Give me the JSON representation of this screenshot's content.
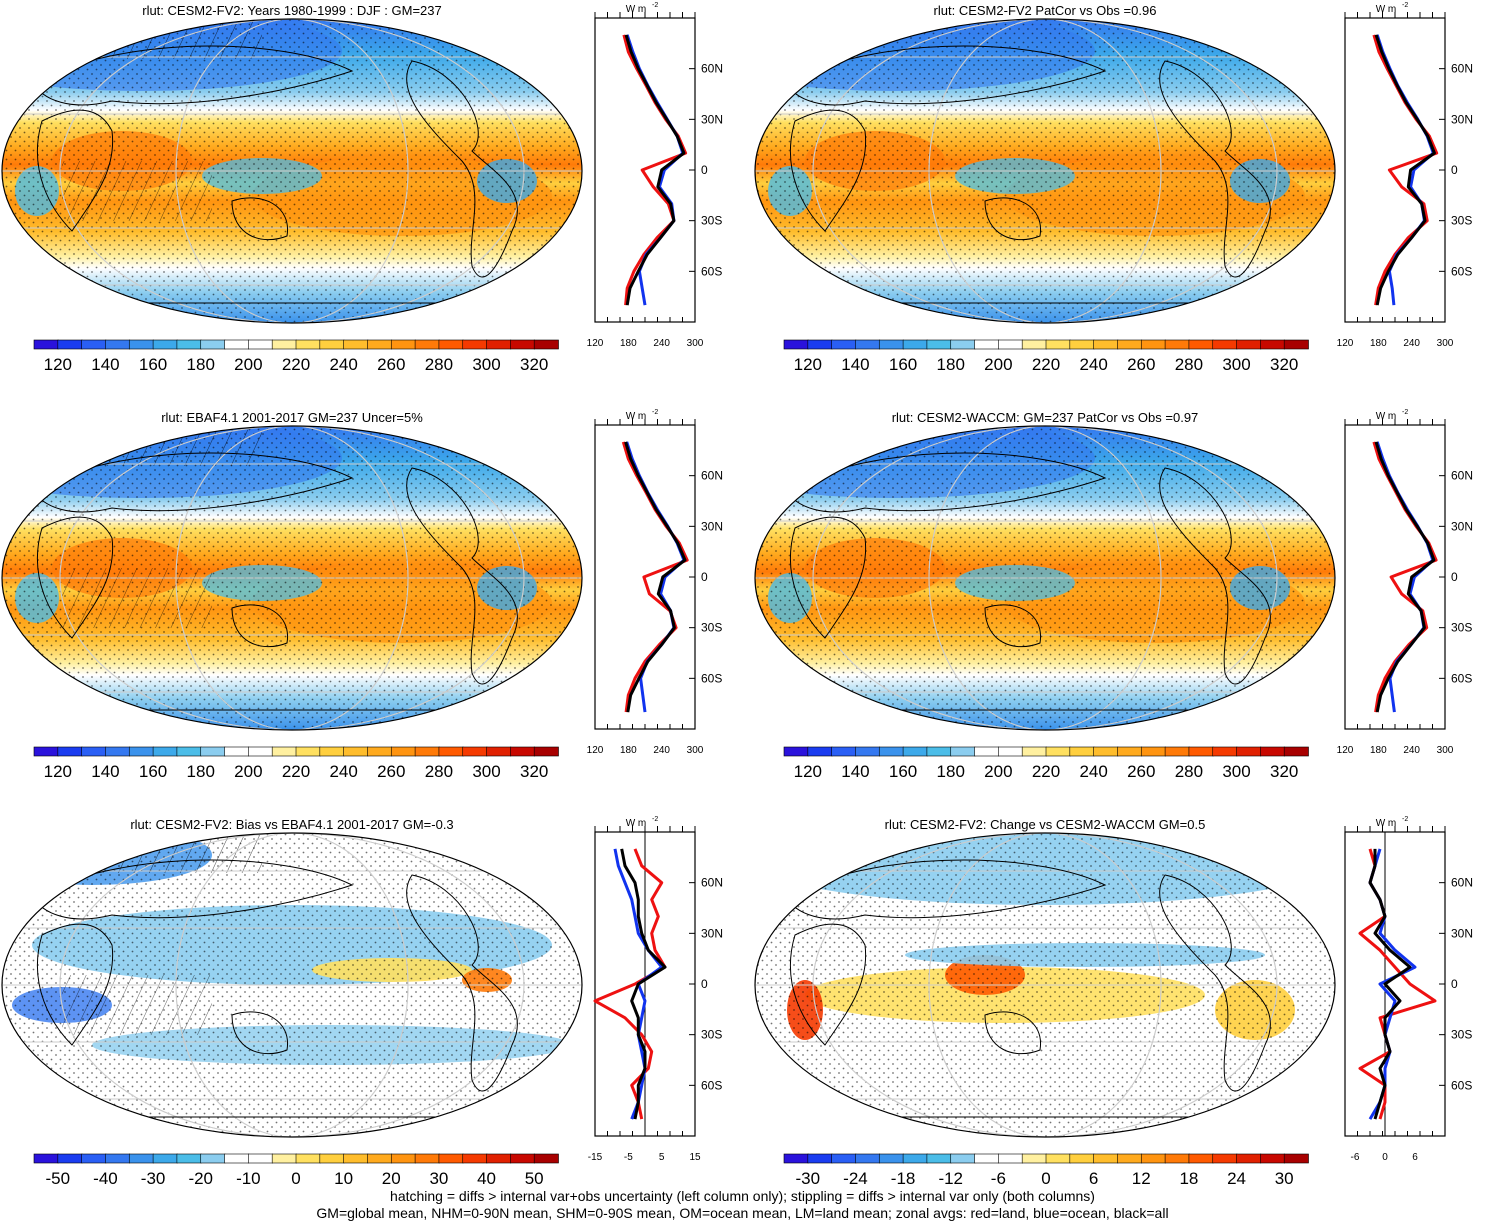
{
  "figure": {
    "caption_line1": "hatching = diffs > internal var+obs uncertainty (left column only); stippling = diffs > internal var only (both columns)",
    "caption_line2": "GM=global mean, NHM=0-90N mean, SHM=0-90S mean, OM=ocean mean, LM=land mean; zonal avgs: red=land, blue=ocean, black=all",
    "zonal_units": "W m",
    "zonal_units_sup": "-2",
    "lat_labels": [
      "60N",
      "30N",
      "0",
      "30S",
      "60S"
    ],
    "colors": {
      "land": "#ee1111",
      "ocean": "#1133ee",
      "all": "#000000"
    }
  },
  "panels": [
    {
      "title": "rlut: CESM2-FV2: Years 1980-1999 : DJF : GM=237",
      "map_type": "abs",
      "hatching": true,
      "colorbar": {
        "labels": [
          "120",
          "140",
          "160",
          "180",
          "200",
          "220",
          "240",
          "260",
          "280",
          "300",
          "320"
        ],
        "colors": [
          "#2a12dc",
          "#1a3cf0",
          "#2a5ff5",
          "#3478f0",
          "#3a92ec",
          "#3ca9ea",
          "#4bbde8",
          "#8bcdef",
          "#ffffff",
          "#ffffff",
          "#fff0a0",
          "#ffe060",
          "#ffcf3e",
          "#ffbd2c",
          "#ffaa1e",
          "#ff9410",
          "#ff7a08",
          "#ff5a00",
          "#f53a00",
          "#e02000",
          "#c80800",
          "#a80000"
        ]
      },
      "zonal_ticks": [
        "120",
        "180",
        "240",
        "300"
      ]
    },
    {
      "title": "rlut: CESM2-FV2 PatCor vs Obs =0.96",
      "map_type": "abs",
      "hatching": false,
      "colorbar": {
        "labels": [
          "120",
          "140",
          "160",
          "180",
          "200",
          "220",
          "240",
          "260",
          "280",
          "300",
          "320"
        ],
        "colors": [
          "#2a12dc",
          "#1a3cf0",
          "#2a5ff5",
          "#3478f0",
          "#3a92ec",
          "#3ca9ea",
          "#4bbde8",
          "#8bcdef",
          "#ffffff",
          "#ffffff",
          "#fff0a0",
          "#ffe060",
          "#ffcf3e",
          "#ffbd2c",
          "#ffaa1e",
          "#ff9410",
          "#ff7a08",
          "#ff5a00",
          "#f53a00",
          "#e02000",
          "#c80800",
          "#a80000"
        ]
      },
      "zonal_ticks": [
        "120",
        "180",
        "240",
        "300"
      ]
    },
    {
      "title": "rlut: EBAF4.1 2001-2017 GM=237 Uncer=5%",
      "map_type": "abs",
      "hatching": true,
      "colorbar": {
        "labels": [
          "120",
          "140",
          "160",
          "180",
          "200",
          "220",
          "240",
          "260",
          "280",
          "300",
          "320"
        ],
        "colors": [
          "#2a12dc",
          "#1a3cf0",
          "#2a5ff5",
          "#3478f0",
          "#3a92ec",
          "#3ca9ea",
          "#4bbde8",
          "#8bcdef",
          "#ffffff",
          "#ffffff",
          "#fff0a0",
          "#ffe060",
          "#ffcf3e",
          "#ffbd2c",
          "#ffaa1e",
          "#ff9410",
          "#ff7a08",
          "#ff5a00",
          "#f53a00",
          "#e02000",
          "#c80800",
          "#a80000"
        ]
      },
      "zonal_ticks": [
        "120",
        "180",
        "240",
        "300"
      ]
    },
    {
      "title": "rlut: CESM2-WACCM: GM=237 PatCor vs Obs =0.97",
      "map_type": "abs",
      "hatching": false,
      "colorbar": {
        "labels": [
          "120",
          "140",
          "160",
          "180",
          "200",
          "220",
          "240",
          "260",
          "280",
          "300",
          "320"
        ],
        "colors": [
          "#2a12dc",
          "#1a3cf0",
          "#2a5ff5",
          "#3478f0",
          "#3a92ec",
          "#3ca9ea",
          "#4bbde8",
          "#8bcdef",
          "#ffffff",
          "#ffffff",
          "#fff0a0",
          "#ffe060",
          "#ffcf3e",
          "#ffbd2c",
          "#ffaa1e",
          "#ff9410",
          "#ff7a08",
          "#ff5a00",
          "#f53a00",
          "#e02000",
          "#c80800",
          "#a80000"
        ]
      },
      "zonal_ticks": [
        "120",
        "180",
        "240",
        "300"
      ]
    },
    {
      "title": "rlut: CESM2-FV2: Bias vs EBAF4.1 2001-2017 GM=-0.3",
      "map_type": "diff",
      "hatching": true,
      "colorbar": {
        "labels": [
          "-50",
          "-40",
          "-30",
          "-20",
          "-10",
          "0",
          "10",
          "20",
          "30",
          "40",
          "50"
        ],
        "colors": [
          "#2a12dc",
          "#1a3cf0",
          "#2a5ff5",
          "#3478f0",
          "#3a92ec",
          "#3ca9ea",
          "#4bbde8",
          "#8bcdef",
          "#ffffff",
          "#ffffff",
          "#fff0a0",
          "#ffe060",
          "#ffcf3e",
          "#ffbd2c",
          "#ffaa1e",
          "#ff9410",
          "#ff7a08",
          "#ff5a00",
          "#f53a00",
          "#e02000",
          "#c80800",
          "#a80000"
        ]
      },
      "zonal_ticks": [
        "-15",
        "-5",
        "5",
        "15"
      ]
    },
    {
      "title": "rlut: CESM2-FV2: Change vs CESM2-WACCM GM=0.5",
      "map_type": "change",
      "hatching": false,
      "colorbar": {
        "labels": [
          "-30",
          "-24",
          "-18",
          "-12",
          "-6",
          "0",
          "6",
          "12",
          "18",
          "24",
          "30"
        ],
        "colors": [
          "#2a12dc",
          "#1a3cf0",
          "#2a5ff5",
          "#3478f0",
          "#3a92ec",
          "#3ca9ea",
          "#4bbde8",
          "#8bcdef",
          "#ffffff",
          "#ffffff",
          "#fff0a0",
          "#ffe060",
          "#ffcf3e",
          "#ffbd2c",
          "#ffaa1e",
          "#ff9410",
          "#ff7a08",
          "#ff5a00",
          "#f53a00",
          "#e02000",
          "#c80800",
          "#a80000"
        ]
      },
      "zonal_ticks": [
        "-6",
        "0",
        "6"
      ]
    }
  ],
  "chart_data": [
    {
      "type": "line",
      "title": "rlut: CESM2-FV2: Years 1980-1999 : DJF : GM=237",
      "xlabel": "W m-2",
      "xlim": [
        120,
        300
      ],
      "y": [
        -80,
        -70,
        -60,
        -50,
        -40,
        -30,
        -20,
        -10,
        0,
        10,
        20,
        30,
        40,
        50,
        60,
        70,
        80
      ],
      "series": [
        {
          "name": "land",
          "values": [
            175,
            178,
            190,
            208,
            232,
            262,
            252,
            225,
            205,
            283,
            270,
            247,
            228,
            212,
            195,
            180,
            172
          ]
        },
        {
          "name": "ocean",
          "values": [
            210,
            205,
            200,
            212,
            238,
            262,
            258,
            236,
            245,
            278,
            268,
            250,
            232,
            215,
            200,
            188,
            178
          ]
        },
        {
          "name": "all",
          "values": [
            178,
            183,
            198,
            214,
            238,
            262,
            256,
            233,
            240,
            280,
            268,
            249,
            230,
            214,
            198,
            185,
            176
          ]
        }
      ]
    },
    {
      "type": "line",
      "title": "rlut: CESM2-FV2 PatCor vs Obs =0.96",
      "xlabel": "W m-2",
      "xlim": [
        120,
        300
      ],
      "y": [
        -80,
        -70,
        -60,
        -50,
        -40,
        -30,
        -20,
        -10,
        0,
        10,
        20,
        30,
        40,
        50,
        60,
        70,
        80
      ],
      "series": [
        {
          "name": "land",
          "values": [
            175,
            180,
            192,
            210,
            234,
            268,
            262,
            222,
            200,
            285,
            272,
            248,
            228,
            212,
            196,
            181,
            172
          ]
        },
        {
          "name": "ocean",
          "values": [
            208,
            205,
            200,
            213,
            240,
            263,
            258,
            238,
            244,
            279,
            268,
            251,
            232,
            215,
            201,
            188,
            178
          ]
        },
        {
          "name": "all",
          "values": [
            178,
            184,
            198,
            215,
            240,
            264,
            258,
            234,
            238,
            281,
            269,
            250,
            230,
            214,
            199,
            186,
            176
          ]
        }
      ]
    },
    {
      "type": "line",
      "title": "rlut: EBAF4.1 2001-2017 GM=237 Uncer=5%",
      "xlabel": "W m-2",
      "xlim": [
        120,
        300
      ],
      "y": [
        -80,
        -70,
        -60,
        -50,
        -40,
        -30,
        -20,
        -10,
        0,
        10,
        20,
        30,
        40,
        50,
        60,
        70,
        80
      ],
      "series": [
        {
          "name": "land",
          "values": [
            176,
            180,
            192,
            210,
            236,
            266,
            255,
            218,
            208,
            286,
            272,
            248,
            228,
            212,
            195,
            180,
            171
          ]
        },
        {
          "name": "ocean",
          "values": [
            210,
            206,
            202,
            214,
            240,
            262,
            256,
            238,
            246,
            280,
            268,
            251,
            232,
            215,
            200,
            187,
            177
          ]
        },
        {
          "name": "all",
          "values": [
            179,
            184,
            199,
            215,
            240,
            263,
            256,
            234,
            242,
            282,
            269,
            250,
            230,
            214,
            198,
            184,
            175
          ]
        }
      ]
    },
    {
      "type": "line",
      "title": "rlut: CESM2-WACCM: GM=237 PatCor vs Obs =0.97",
      "xlabel": "W m-2",
      "xlim": [
        120,
        300
      ],
      "y": [
        -80,
        -70,
        -60,
        -50,
        -40,
        -30,
        -20,
        -10,
        0,
        10,
        20,
        30,
        40,
        50,
        60,
        70,
        80
      ],
      "series": [
        {
          "name": "land",
          "values": [
            175,
            180,
            192,
            210,
            235,
            267,
            260,
            222,
            203,
            284,
            271,
            248,
            228,
            212,
            196,
            181,
            172
          ]
        },
        {
          "name": "ocean",
          "values": [
            209,
            205,
            201,
            213,
            239,
            262,
            257,
            237,
            245,
            278,
            268,
            251,
            232,
            215,
            200,
            188,
            178
          ]
        },
        {
          "name": "all",
          "values": [
            178,
            184,
            198,
            215,
            239,
            263,
            257,
            234,
            240,
            280,
            269,
            250,
            230,
            214,
            198,
            185,
            176
          ]
        }
      ]
    },
    {
      "type": "line",
      "title": "rlut: CESM2-FV2: Bias vs EBAF4.1 2001-2017 GM=-0.3",
      "xlabel": "W m-2",
      "xlim": [
        -15,
        15
      ],
      "y": [
        -80,
        -70,
        -60,
        -50,
        -40,
        -30,
        -20,
        -10,
        0,
        10,
        20,
        30,
        40,
        50,
        60,
        70,
        80
      ],
      "series": [
        {
          "name": "land",
          "values": [
            -1,
            -2,
            -4,
            1,
            2,
            -1,
            -6,
            -15,
            -3,
            6,
            3,
            2,
            4,
            2,
            5,
            -1,
            -3
          ]
        },
        {
          "name": "ocean",
          "values": [
            -4,
            -2,
            -1,
            0,
            -1,
            -2,
            -1,
            0,
            -2,
            5,
            1,
            -2,
            -3,
            -4,
            -6,
            -8,
            -9
          ]
        },
        {
          "name": "all",
          "values": [
            -3,
            -2,
            -2,
            0,
            0,
            -2,
            -2,
            -4,
            -2,
            6,
            1,
            -1,
            -2,
            -2,
            -3,
            -6,
            -7
          ]
        }
      ]
    },
    {
      "type": "line",
      "title": "rlut: CESM2-FV2: Change vs CESM2-WACCM GM=0.5",
      "xlabel": "W m-2",
      "xlim": [
        -8,
        12
      ],
      "y": [
        -80,
        -70,
        -60,
        -50,
        -40,
        -30,
        -20,
        -10,
        0,
        10,
        20,
        30,
        40,
        50,
        60,
        70,
        80
      ],
      "series": [
        {
          "name": "land",
          "values": [
            -1,
            0,
            0,
            -5,
            1,
            0,
            -1,
            10,
            5,
            2,
            -1,
            -5,
            0,
            -1,
            -3,
            -2,
            -3
          ]
        },
        {
          "name": "ocean",
          "values": [
            -3,
            -1,
            0,
            0,
            1,
            0,
            1,
            2,
            -1,
            6,
            2,
            -1,
            0,
            -1,
            -3,
            -2,
            -1
          ]
        },
        {
          "name": "all",
          "values": [
            -2,
            -1,
            0,
            -1,
            1,
            0,
            0,
            3,
            0,
            5,
            1,
            -2,
            0,
            -1,
            -3,
            -2,
            -2
          ]
        }
      ]
    }
  ]
}
